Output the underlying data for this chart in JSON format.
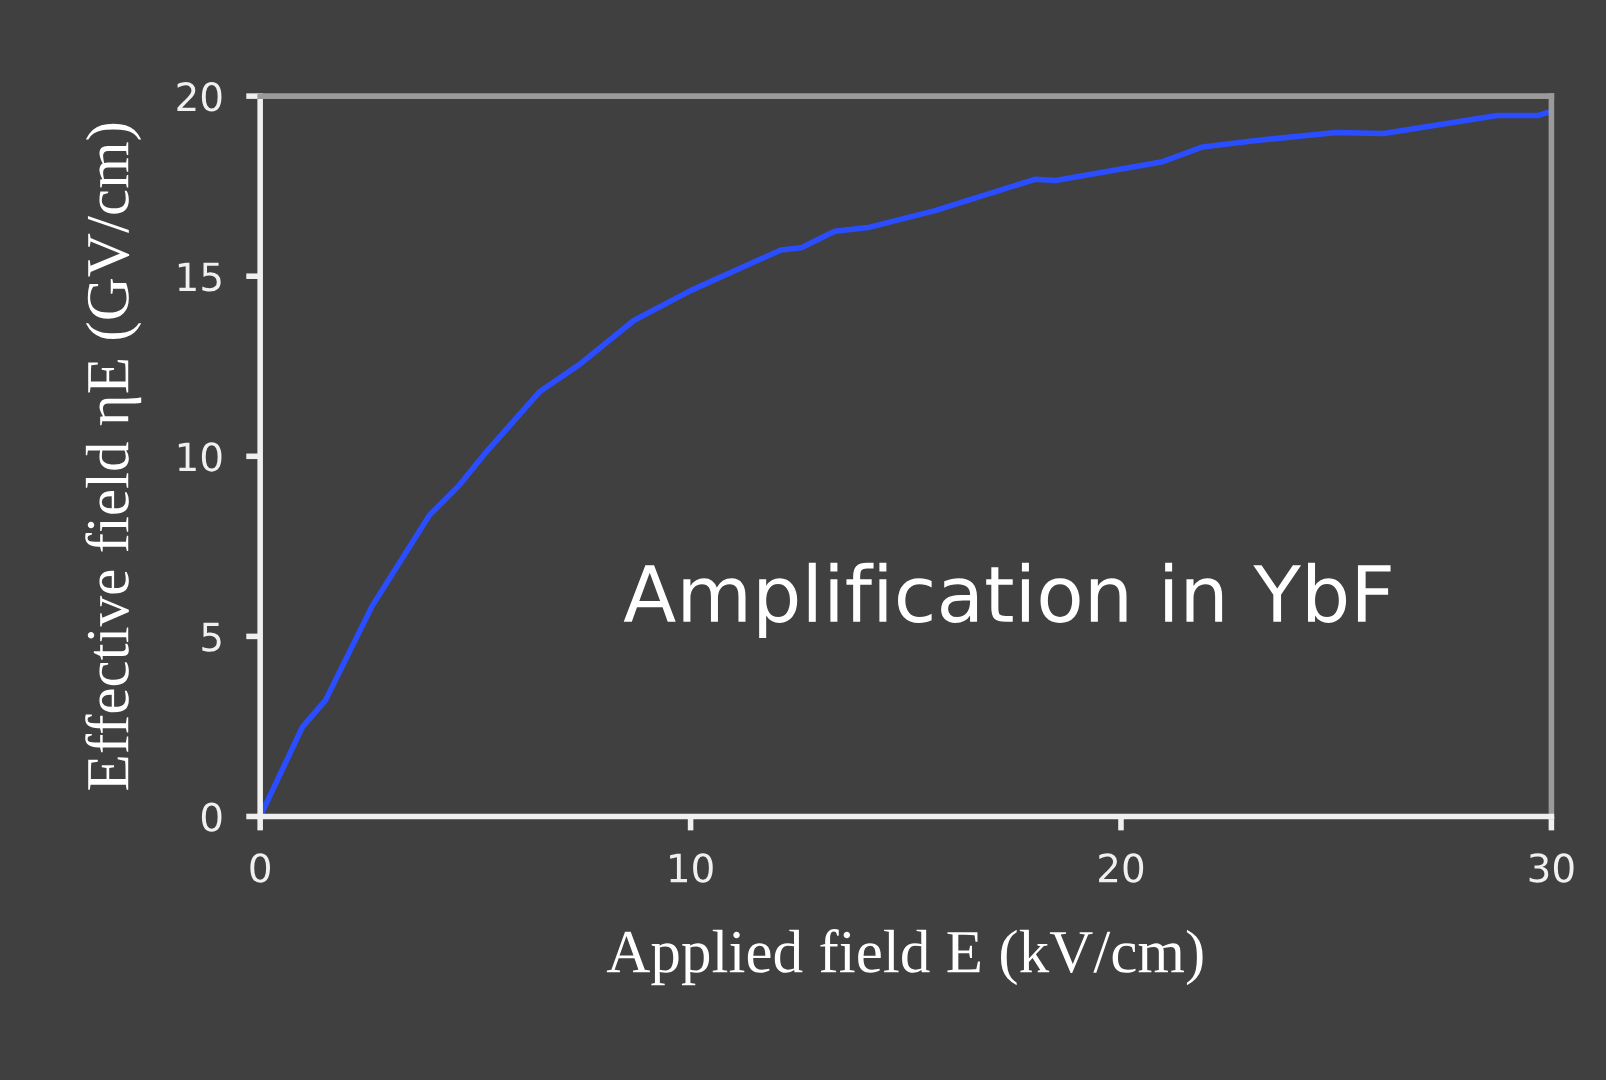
{
  "chart_data": {
    "type": "line",
    "xlabel": "Applied field E (kV/cm)",
    "ylabel": "Effective field ηE (GV/cm)",
    "annotations": [
      "Amplification in YbF"
    ],
    "x": [
      0,
      0.98,
      1.52,
      2.6,
      3.93,
      4.63,
      5.26,
      6.5,
      7.43,
      8.68,
      10,
      12.1,
      12.57,
      13.35,
      14.12,
      15.68,
      18.0,
      18.48,
      20.97,
      21.9,
      23.15,
      25.0,
      26.1,
      28.74,
      29.68,
      30
    ],
    "series": [
      {
        "color": "#2a4dff",
        "values": [
          0,
          2.48,
          3.23,
          5.84,
          8.36,
          9.2,
          10.13,
          11.8,
          12.56,
          13.77,
          14.6,
          15.73,
          15.79,
          16.25,
          16.35,
          16.82,
          17.69,
          17.66,
          18.18,
          18.59,
          18.77,
          18.99,
          18.96,
          19.46,
          19.46,
          19.58
        ]
      }
    ],
    "xlim": [
      0,
      30
    ],
    "xticks": [
      0,
      10,
      20,
      30
    ],
    "ylim": [
      0,
      20
    ],
    "yticks": [
      0,
      5,
      10,
      15,
      20
    ],
    "grid": false,
    "legend": false,
    "marker": "none",
    "line_style": "solid"
  }
}
